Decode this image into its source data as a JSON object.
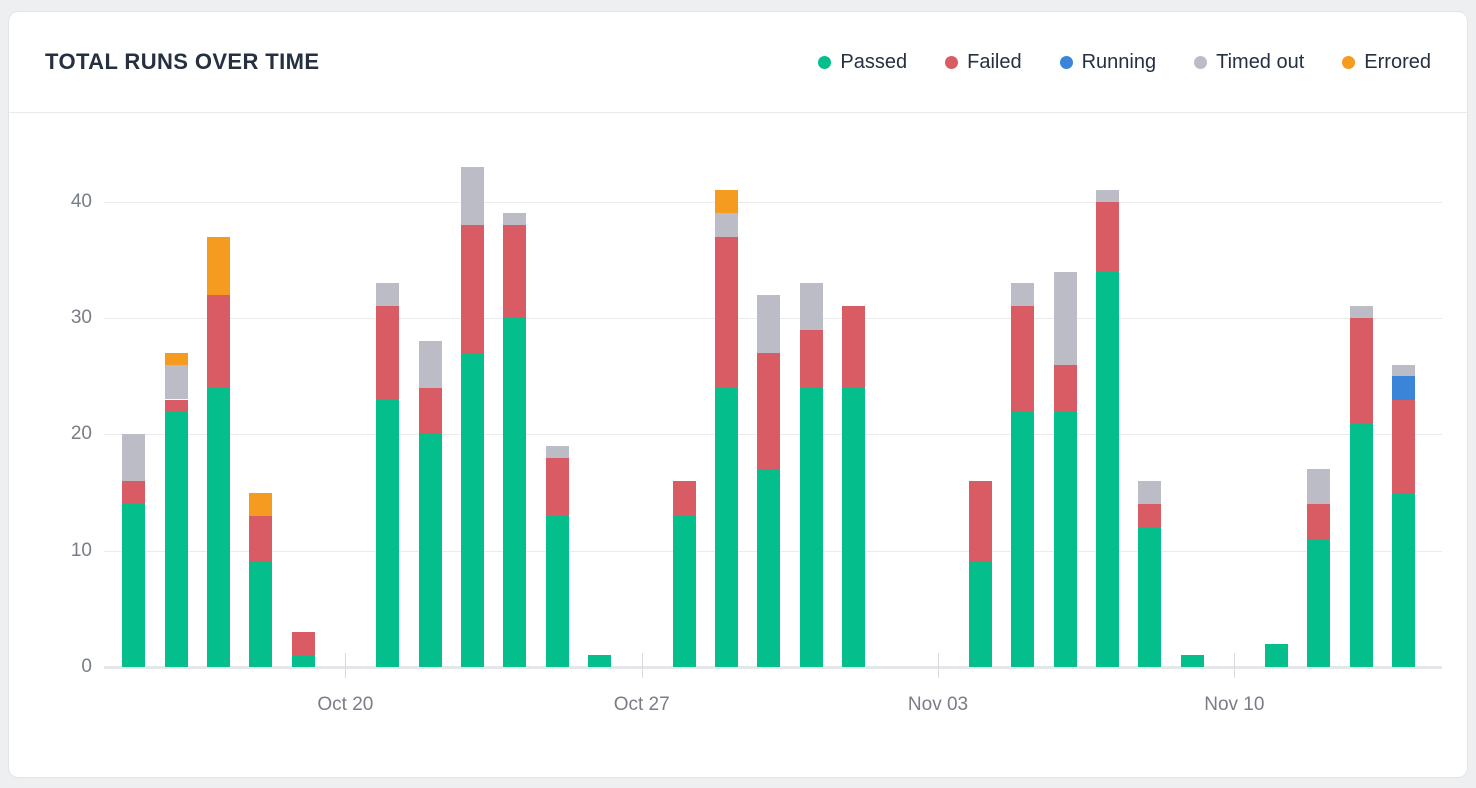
{
  "header": {
    "title": "TOTAL RUNS OVER TIME",
    "legend": [
      {
        "label": "Passed",
        "color": "#04BE8C",
        "icon": "passed-dot-icon"
      },
      {
        "label": "Failed",
        "color": "#D95C64",
        "icon": "failed-dot-icon"
      },
      {
        "label": "Running",
        "color": "#3A85D8",
        "icon": "running-dot-icon"
      },
      {
        "label": "Timed out",
        "color": "#BCBCC6",
        "icon": "timed-out-dot-icon"
      },
      {
        "label": "Errored",
        "color": "#F49B20",
        "icon": "errored-dot-icon"
      }
    ]
  },
  "chart_data": {
    "type": "bar",
    "stacked": true,
    "title": "TOTAL RUNS OVER TIME",
    "xlabel": "",
    "ylabel": "",
    "ylim": [
      0,
      45
    ],
    "yticks": [
      0,
      10,
      20,
      30,
      40
    ],
    "grid": "horizontal",
    "legend_position": "top-right",
    "n_slots": 31,
    "x_ticks": [
      {
        "label": "Oct 20",
        "slot": 5
      },
      {
        "label": "Oct 27",
        "slot": 12
      },
      {
        "label": "Nov 03",
        "slot": 19
      },
      {
        "label": "Nov 10",
        "slot": 26
      }
    ],
    "stack_order_bottom_to_top": [
      "Passed",
      "Failed",
      "Running",
      "Timed out",
      "Errored"
    ],
    "series": [
      {
        "name": "Passed",
        "color": "#04BE8C",
        "values": [
          14,
          22,
          24,
          9,
          1,
          0,
          23,
          20,
          27,
          30,
          13,
          1,
          0,
          13,
          24,
          17,
          24,
          24,
          0,
          0,
          9,
          22,
          22,
          34,
          12,
          1,
          0,
          2,
          11,
          21,
          15
        ]
      },
      {
        "name": "Failed",
        "color": "#D95C64",
        "values": [
          2,
          1,
          8,
          4,
          2,
          0,
          8,
          4,
          11,
          8,
          5,
          0,
          0,
          3,
          13,
          10,
          5,
          7,
          0,
          0,
          7,
          9,
          4,
          6,
          2,
          0,
          0,
          0,
          3,
          9,
          8
        ]
      },
      {
        "name": "Running",
        "color": "#3A85D8",
        "values": [
          0,
          0,
          0,
          0,
          0,
          0,
          0,
          0,
          0,
          0,
          0,
          0,
          0,
          0,
          0,
          0,
          0,
          0,
          0,
          0,
          0,
          0,
          0,
          0,
          0,
          0,
          0,
          0,
          0,
          0,
          2
        ]
      },
      {
        "name": "Timed out",
        "color": "#BCBCC6",
        "values": [
          4,
          3,
          0,
          0,
          0,
          0,
          2,
          4,
          5,
          1,
          1,
          0,
          0,
          0,
          2,
          5,
          4,
          0,
          0,
          0,
          0,
          2,
          8,
          1,
          2,
          0,
          0,
          0,
          3,
          1,
          1
        ]
      },
      {
        "name": "Errored",
        "color": "#F49B20",
        "values": [
          0,
          1,
          5,
          2,
          0,
          0,
          0,
          0,
          0,
          0,
          0,
          0,
          0,
          0,
          2,
          0,
          0,
          0,
          0,
          0,
          0,
          0,
          0,
          0,
          0,
          0,
          0,
          0,
          0,
          0,
          0
        ]
      }
    ],
    "totals": [
      20,
      27,
      37,
      15,
      3,
      0,
      33,
      28,
      43,
      39,
      19,
      1,
      0,
      16,
      41,
      32,
      33,
      31,
      0,
      0,
      16,
      33,
      34,
      41,
      16,
      1,
      0,
      2,
      17,
      31,
      26
    ]
  }
}
